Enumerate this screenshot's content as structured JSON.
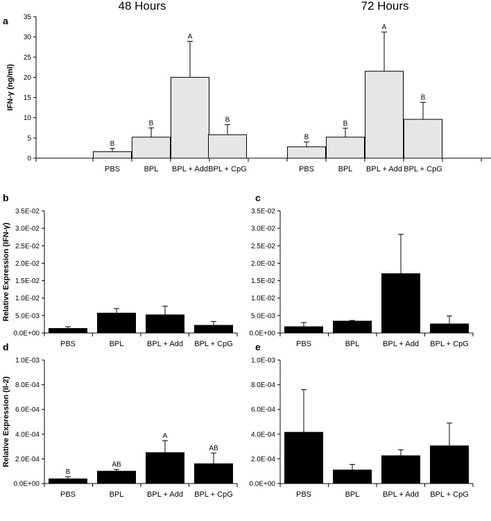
{
  "chart_data": [
    {
      "panel": "a",
      "type": "bar",
      "ylabel": "IFN-γ (ng/ml)",
      "ylim": [
        0,
        35
      ],
      "yticks": [
        "0",
        "5",
        "10",
        "15",
        "20",
        "25",
        "30",
        "35"
      ],
      "ytick_values": [
        0,
        5,
        10,
        15,
        20,
        25,
        30,
        35
      ],
      "bar_color": "#e6e6e6",
      "groups": [
        {
          "title": "48 Hours",
          "categories": [
            "PBS",
            "BPL",
            "BPL + Add",
            "BPL + CpG"
          ],
          "values": [
            1.6,
            5.2,
            20.0,
            5.8
          ],
          "errors": [
            0.8,
            2.3,
            8.9,
            2.5
          ],
          "letters": [
            "B",
            "B",
            "A",
            "B"
          ]
        },
        {
          "title": "72 Hours",
          "categories": [
            "PBS",
            "BPL",
            "BPL + Add",
            "BPL + CpG"
          ],
          "values": [
            2.8,
            5.2,
            21.5,
            9.6
          ],
          "errors": [
            1.2,
            2.2,
            9.7,
            4.2
          ],
          "letters": [
            "B",
            "B",
            "A",
            "B"
          ]
        }
      ]
    },
    {
      "panel": "b",
      "type": "bar",
      "ylabel": "Relative Expression (IFN-γ)",
      "ylim": [
        0,
        0.035
      ],
      "yticks": [
        "0.0E+00",
        "5.0E-03",
        "1.0E-02",
        "1.5E-02",
        "2.0E-02",
        "2.5E-02",
        "3.0E-02",
        "3.5E-02"
      ],
      "ytick_values": [
        0,
        0.005,
        0.01,
        0.015,
        0.02,
        0.025,
        0.03,
        0.035
      ],
      "bar_color": "#000000",
      "categories": [
        "PBS",
        "BPL",
        "BPL + Add",
        "BPL + CpG"
      ],
      "values": [
        0.0013,
        0.0057,
        0.0052,
        0.0022
      ],
      "errors": [
        0.0005,
        0.0013,
        0.0025,
        0.0011
      ],
      "letters": [
        "",
        "",
        "",
        ""
      ]
    },
    {
      "panel": "c",
      "type": "bar",
      "ylabel": "",
      "ylim": [
        0,
        0.035
      ],
      "yticks": [
        "0.0E+00",
        "5.0E-03",
        "1.0E-02",
        "1.5E-02",
        "2.0E-02",
        "2.5E-02",
        "3.0E-02",
        "3.5E-02"
      ],
      "ytick_values": [
        0,
        0.005,
        0.01,
        0.015,
        0.02,
        0.025,
        0.03,
        0.035
      ],
      "bar_color": "#000000",
      "categories": [
        "PBS",
        "BPL",
        "BPL + Add",
        "BPL + CpG"
      ],
      "values": [
        0.0018,
        0.0034,
        0.017,
        0.0026
      ],
      "errors": [
        0.0012,
        0.0002,
        0.0113,
        0.0023
      ],
      "letters": [
        "",
        "",
        "",
        ""
      ]
    },
    {
      "panel": "d",
      "type": "bar",
      "ylabel": "Relative Expression (Il-2)",
      "ylim": [
        0,
        0.001
      ],
      "yticks": [
        "0.0E+00",
        "2.0E-04",
        "4.0E-04",
        "6.0E-04",
        "8.0E-04",
        "1.0E-03"
      ],
      "ytick_values": [
        0,
        0.0002,
        0.0004,
        0.0006,
        0.0008,
        0.001
      ],
      "bar_color": "#000000",
      "categories": [
        "PBS",
        "BPL",
        "BPL + Add",
        "BPL + CpG"
      ],
      "values": [
        3.8e-05,
        0.0001,
        0.00025,
        0.00016
      ],
      "errors": [
        1.7e-05,
        1.4e-05,
        9.7e-05,
        8.7e-05
      ],
      "letters": [
        "B",
        "AB",
        "A",
        "AB"
      ]
    },
    {
      "panel": "e",
      "type": "bar",
      "ylabel": "",
      "ylim": [
        0,
        0.001
      ],
      "yticks": [
        "0.0E+00",
        "2.0E-04",
        "4.0E-04",
        "6.0E-04",
        "8.0E-04",
        "1.0E-03"
      ],
      "ytick_values": [
        0,
        0.0002,
        0.0004,
        0.0006,
        0.0008,
        0.001
      ],
      "bar_color": "#000000",
      "categories": [
        "PBS",
        "BPL",
        "BPL + Add",
        "BPL + CpG"
      ],
      "values": [
        0.000415,
        0.00011,
        0.000225,
        0.000305
      ],
      "errors": [
        0.000345,
        4.5e-05,
        4.8e-05,
        0.000185
      ],
      "letters": [
        "",
        "",
        "",
        ""
      ]
    }
  ]
}
